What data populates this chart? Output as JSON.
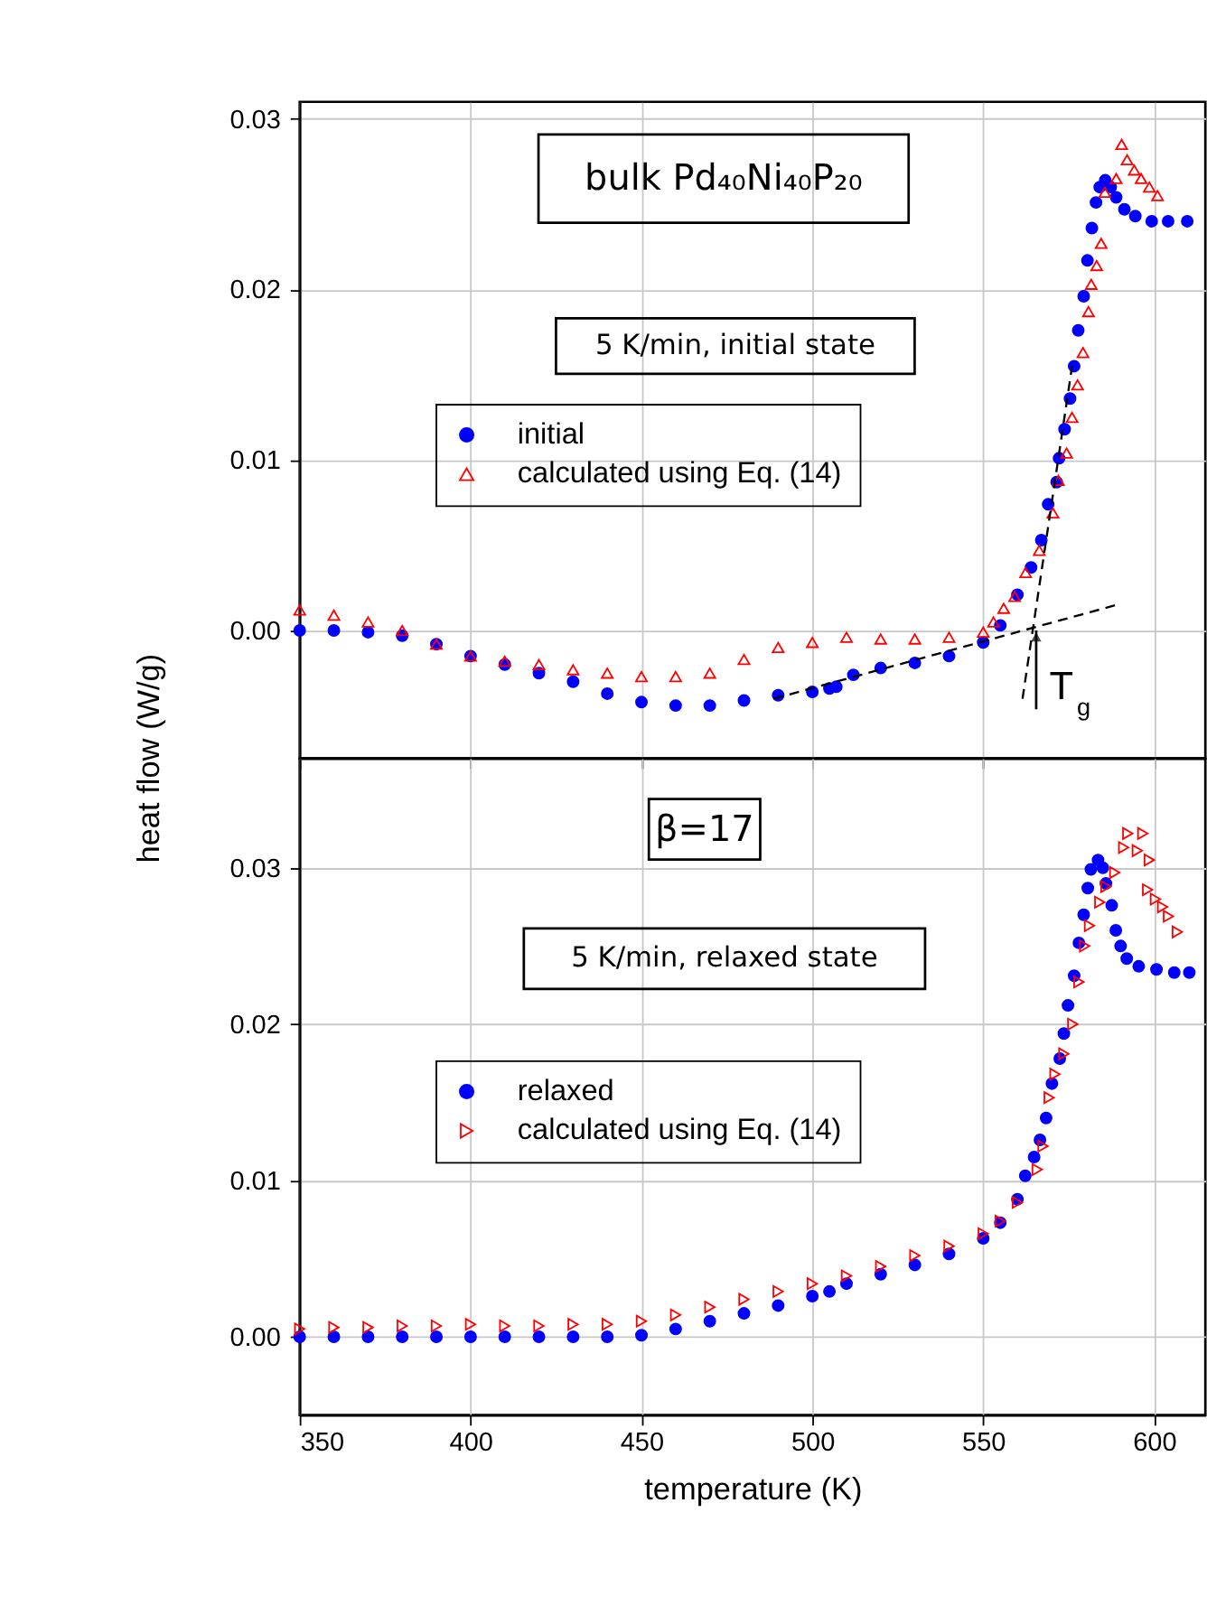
{
  "chart_data": [
    {
      "type": "scatter",
      "xlim": [
        350,
        615
      ],
      "ylim": [
        -0.0075,
        0.031
      ],
      "xticks": [
        350,
        400,
        450,
        500,
        550,
        600
      ],
      "yticks": [
        {
          "value": 0,
          "label": "0.00"
        },
        0.01,
        0.02,
        0.03
      ],
      "tick_labels": "y",
      "grid": true,
      "legend": "center",
      "ylabel": "heat flow (W/g)",
      "annotations": [
        "bulk Pd₄₀Ni₄₀P₂₀",
        "5 K/min, initial state",
        {
          "text": "T$_{g}$",
          "x": 565.5,
          "y": 0
        }
      ],
      "series": [
        {
          "name": "initial",
          "color": "#0000ff",
          "marker": "circle",
          "x": [
            350,
            360,
            370,
            380,
            390,
            400,
            410,
            420,
            430,
            440,
            450,
            460,
            470,
            480,
            490,
            500,
            505,
            507,
            512,
            520,
            530,
            540,
            550,
            555,
            560,
            564,
            567,
            569,
            571.5,
            572.2,
            573.8,
            575.4,
            576.6,
            577.8,
            579.4,
            580.5,
            581.8,
            583,
            584.1,
            585.7,
            587.3,
            588.9,
            591.3,
            594.5,
            599.3,
            604.1,
            609.7
          ],
          "values": [
            0.0,
            0.0,
            -0.0001,
            -0.0003,
            -0.0008,
            -0.0015,
            -0.002,
            -0.0025,
            -0.003,
            -0.0037,
            -0.0042,
            -0.0044,
            -0.0044,
            -0.0041,
            -0.0038,
            -0.0036,
            -0.0034,
            -0.0033,
            -0.0026,
            -0.0022,
            -0.0019,
            -0.0015,
            -0.0007,
            0.0003,
            0.0021,
            0.0037,
            0.0053,
            0.0074,
            0.0087,
            0.0101,
            0.0118,
            0.0136,
            0.0155,
            0.0176,
            0.0196,
            0.0217,
            0.0236,
            0.0251,
            0.026,
            0.0264,
            0.026,
            0.0254,
            0.0247,
            0.0243,
            0.024,
            0.024,
            0.024
          ]
        },
        {
          "name": "calculated using Eq. (14)",
          "color": "#ff0000",
          "marker": "triangle",
          "x": [
            350,
            360,
            370,
            380,
            390,
            400,
            410,
            420,
            430,
            440,
            450,
            460,
            470,
            480,
            490,
            500,
            510,
            520,
            530,
            540,
            550,
            553,
            556,
            559.2,
            562.4,
            566.4,
            570.4,
            572,
            574.4,
            576,
            577.6,
            579.2,
            580.8,
            581.6,
            583.2,
            584.5,
            585.6,
            588.9,
            590.5,
            592.1,
            594.2,
            596.2,
            598.6,
            601
          ],
          "values": [
            0.0012,
            0.0009,
            0.0005,
            0.0,
            -0.0008,
            -0.0015,
            -0.0018,
            -0.002,
            -0.0023,
            -0.0025,
            -0.0027,
            -0.0027,
            -0.0025,
            -0.0017,
            -0.001,
            -0.0007,
            -0.0004,
            -0.0005,
            -0.0005,
            -0.0004,
            -0.0001,
            0.0005,
            0.0013,
            0.002,
            0.0034,
            0.0047,
            0.0069,
            0.0088,
            0.0104,
            0.0125,
            0.0144,
            0.0163,
            0.0187,
            0.0203,
            0.0214,
            0.0227,
            0.0257,
            0.0265,
            0.0285,
            0.0276,
            0.027,
            0.0265,
            0.026,
            0.0255
          ]
        },
        {
          "type": "line",
          "color": "#000000",
          "line_style": "dashed",
          "x": [
            488.7,
            589
          ],
          "values": [
            -0.004,
            0.0015
          ]
        },
        {
          "type": "line",
          "color": "#000000",
          "line_style": "dashed",
          "x": [
            561.5,
            576
          ],
          "values": [
            -0.004,
            0.0155
          ]
        }
      ]
    },
    {
      "type": "scatter",
      "xlim": [
        350,
        615
      ],
      "ylim": [
        -0.005,
        0.037
      ],
      "xticks": [
        350,
        400,
        450,
        500,
        550,
        600
      ],
      "yticks": [
        {
          "value": 0,
          "label": "0.00"
        },
        0.01,
        0.02,
        0.03
      ],
      "grid": true,
      "legend": "center",
      "xlabel": "temperature (K)",
      "annotations": [
        "β=17",
        "5 K/min, relaxed state"
      ],
      "series": [
        {
          "name": "relaxed",
          "color": "#0000ff",
          "marker": "circle",
          "x": [
            350,
            360,
            370,
            380,
            390,
            400,
            410,
            420,
            430,
            440,
            450,
            460,
            470,
            480,
            490,
            500,
            505,
            510,
            520,
            530,
            540,
            550,
            555,
            560,
            562.3,
            564.9,
            566.6,
            568.4,
            570.1,
            572.4,
            573.6,
            574.8,
            576.6,
            578,
            579.4,
            580.6,
            581.5,
            583.6,
            585,
            585.9,
            587.6,
            588.8,
            590.2,
            592,
            595.5,
            600.7,
            605.9,
            610.3
          ],
          "values": [
            0.0,
            0.0,
            0.0,
            0.0,
            0.0,
            0.0,
            0.0,
            0.0,
            0.0,
            0.0,
            0.0001,
            0.0005,
            0.001,
            0.0015,
            0.002,
            0.0026,
            0.0029,
            0.0034,
            0.004,
            0.0046,
            0.0053,
            0.0063,
            0.0073,
            0.0088,
            0.0103,
            0.0115,
            0.0126,
            0.014,
            0.0162,
            0.0178,
            0.0194,
            0.0212,
            0.0231,
            0.0252,
            0.027,
            0.0287,
            0.0299,
            0.0305,
            0.03,
            0.029,
            0.0276,
            0.026,
            0.025,
            0.0242,
            0.0237,
            0.0235,
            0.0233,
            0.0233
          ]
        },
        {
          "name": "calculated using Eq. (14)",
          "color": "#ff0000",
          "marker": "triangle-right",
          "x": [
            350,
            360,
            370,
            380,
            390,
            400,
            410,
            420,
            430,
            440,
            450,
            460,
            470,
            480,
            490,
            500,
            510,
            520,
            530,
            540,
            550,
            555,
            560,
            565.8,
            567.5,
            569.3,
            571,
            573.6,
            576.2,
            578,
            579.7,
            581.1,
            584.1,
            585.9,
            588.5,
            591.1,
            592.3,
            595.1,
            596.7,
            598.1,
            598.6,
            600.4,
            602.5,
            604.2,
            606.8
          ],
          "values": [
            0.0005,
            0.0006,
            0.0006,
            0.0007,
            0.0007,
            0.0008,
            0.0007,
            0.0007,
            0.0008,
            0.0008,
            0.001,
            0.0014,
            0.0019,
            0.0024,
            0.0029,
            0.0034,
            0.0039,
            0.0045,
            0.0052,
            0.0058,
            0.0066,
            0.0074,
            0.0086,
            0.0107,
            0.0122,
            0.0153,
            0.0168,
            0.0181,
            0.02,
            0.0227,
            0.025,
            0.0263,
            0.0278,
            0.0288,
            0.0297,
            0.0313,
            0.0322,
            0.0311,
            0.0322,
            0.0286,
            0.0305,
            0.028,
            0.0275,
            0.0269,
            0.0259
          ]
        }
      ]
    }
  ]
}
